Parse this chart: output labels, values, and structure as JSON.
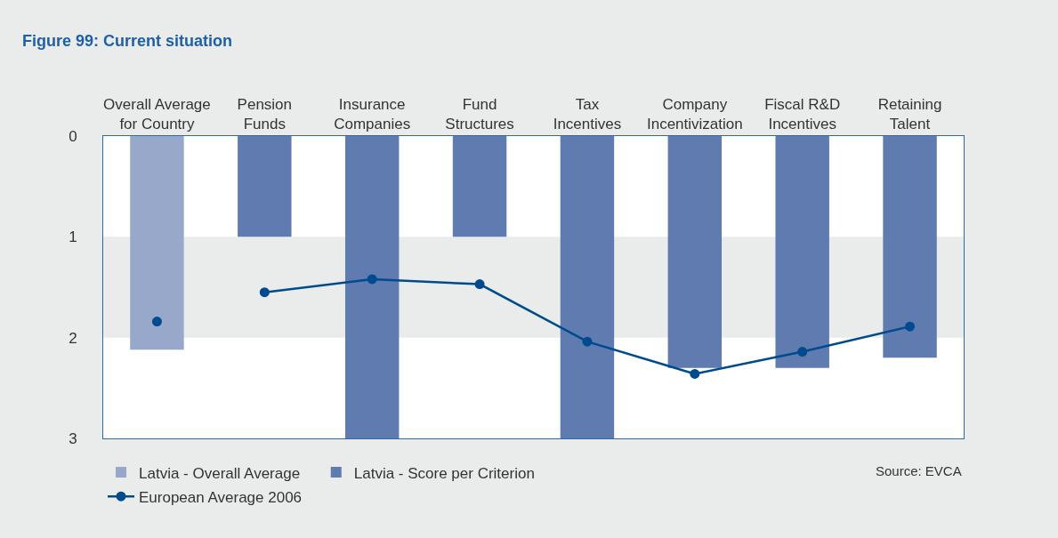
{
  "chart_data": {
    "type": "bar",
    "title": "Figure 99: Current situation",
    "categories": [
      "Overall Average\nfor Country",
      "Pension\nFunds",
      "Insurance\nCompanies",
      "Fund\nStructures",
      "Tax\nIncentives",
      "Company\nIncentivization",
      "Fiscal R&D\nIncentives",
      "Retaining\nTalent"
    ],
    "series": [
      {
        "name": "Latvia - Overall Average",
        "color": "#97a8ca",
        "values": [
          2.12,
          null,
          null,
          null,
          null,
          null,
          null,
          null
        ]
      },
      {
        "name": "Latvia - Score per Criterion",
        "color": "#5f7bb0",
        "values": [
          null,
          1.0,
          3.0,
          1.0,
          3.0,
          2.3,
          2.3,
          2.2
        ]
      },
      {
        "type": "scatter",
        "color": "#004a8f",
        "values": [
          1.84,
          null,
          null,
          null,
          null,
          null,
          null,
          null
        ]
      },
      {
        "name": "European Average 2006",
        "type": "line",
        "color": "#004a8f",
        "marker": "circle",
        "values": [
          null,
          1.55,
          1.42,
          1.47,
          2.04,
          2.36,
          2.14,
          1.89
        ]
      }
    ],
    "ylim": [
      3,
      0
    ],
    "yticks": [
      0,
      1,
      2,
      3
    ],
    "bands": [
      {
        "axis": "y",
        "from": 1,
        "to": 2,
        "color": "#e9eceb"
      }
    ],
    "grid": false,
    "legend": "bottom left",
    "annotations": [
      "Source: EVCA"
    ]
  }
}
